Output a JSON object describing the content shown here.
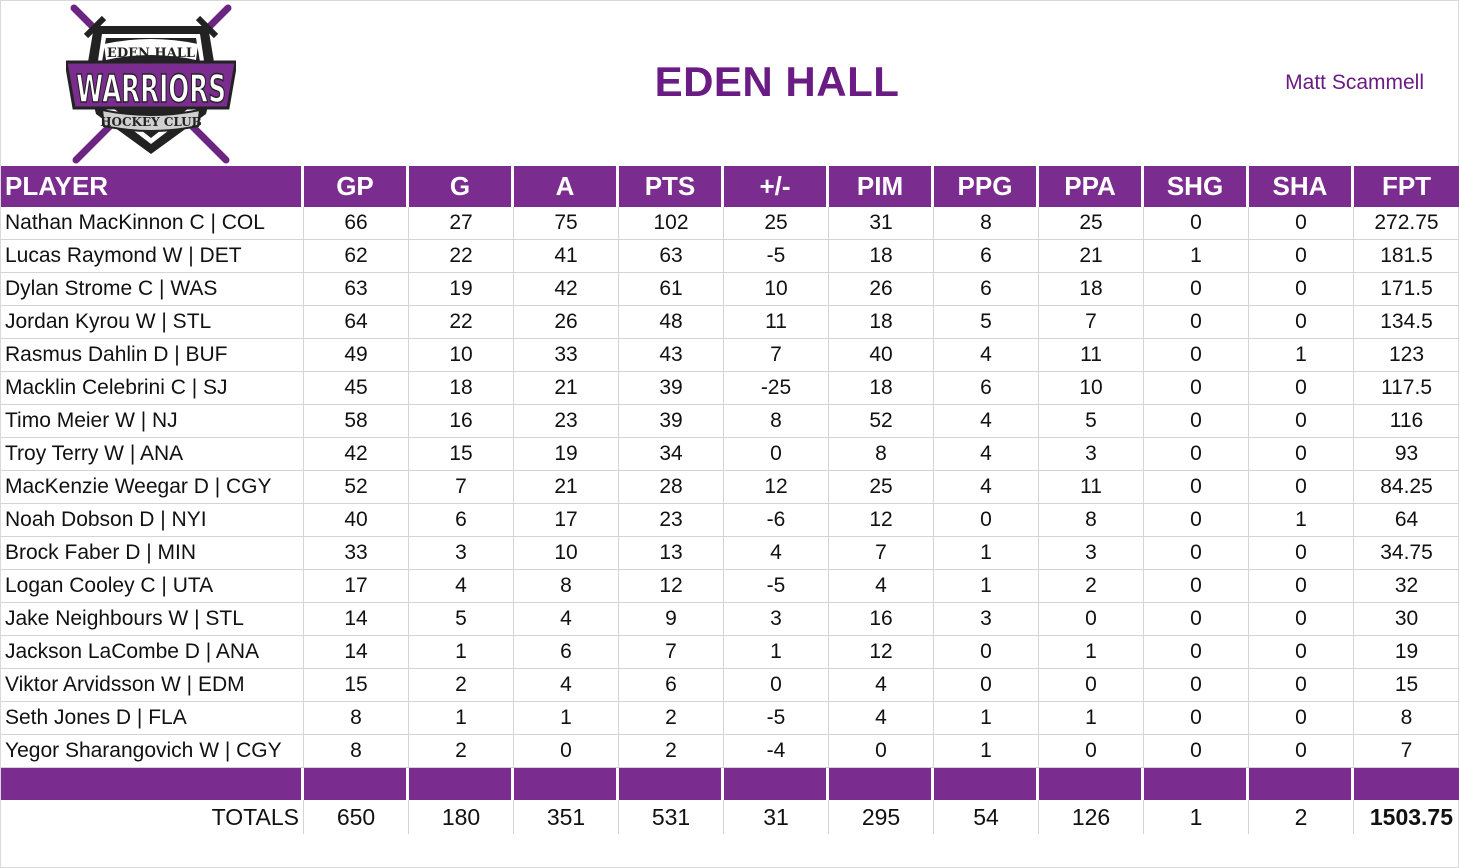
{
  "header": {
    "title": "EDEN HALL",
    "owner": "Matt Scammell",
    "logo": {
      "line1": "EDEN HALL",
      "line2": "WARRIORS",
      "line3": "HOCKEY CLUB",
      "colors": {
        "primary": "#7b2c8f",
        "dark": "#222222",
        "accent": "#bdbdbd"
      }
    }
  },
  "colors": {
    "header_bg": "#7b2c8f",
    "title": "#6a1b84"
  },
  "table": {
    "columns": [
      "PLAYER",
      "GP",
      "G",
      "A",
      "PTS",
      "+/-",
      "PIM",
      "PPG",
      "PPA",
      "SHG",
      "SHA",
      "FPT"
    ],
    "rows": [
      [
        "Nathan MacKinnon C | COL",
        "66",
        "27",
        "75",
        "102",
        "25",
        "31",
        "8",
        "25",
        "0",
        "0",
        "272.75"
      ],
      [
        "Lucas Raymond W | DET",
        "62",
        "22",
        "41",
        "63",
        "-5",
        "18",
        "6",
        "21",
        "1",
        "0",
        "181.5"
      ],
      [
        "Dylan Strome C | WAS",
        "63",
        "19",
        "42",
        "61",
        "10",
        "26",
        "6",
        "18",
        "0",
        "0",
        "171.5"
      ],
      [
        "Jordan Kyrou W | STL",
        "64",
        "22",
        "26",
        "48",
        "11",
        "18",
        "5",
        "7",
        "0",
        "0",
        "134.5"
      ],
      [
        "Rasmus Dahlin D | BUF",
        "49",
        "10",
        "33",
        "43",
        "7",
        "40",
        "4",
        "11",
        "0",
        "1",
        "123"
      ],
      [
        "Macklin Celebrini C | SJ",
        "45",
        "18",
        "21",
        "39",
        "-25",
        "18",
        "6",
        "10",
        "0",
        "0",
        "117.5"
      ],
      [
        "Timo Meier W | NJ",
        "58",
        "16",
        "23",
        "39",
        "8",
        "52",
        "4",
        "5",
        "0",
        "0",
        "116"
      ],
      [
        "Troy Terry W | ANA",
        "42",
        "15",
        "19",
        "34",
        "0",
        "8",
        "4",
        "3",
        "0",
        "0",
        "93"
      ],
      [
        "MacKenzie Weegar D | CGY",
        "52",
        "7",
        "21",
        "28",
        "12",
        "25",
        "4",
        "11",
        "0",
        "0",
        "84.25"
      ],
      [
        "Noah Dobson D | NYI",
        "40",
        "6",
        "17",
        "23",
        "-6",
        "12",
        "0",
        "8",
        "0",
        "1",
        "64"
      ],
      [
        "Brock Faber D | MIN",
        "33",
        "3",
        "10",
        "13",
        "4",
        "7",
        "1",
        "3",
        "0",
        "0",
        "34.75"
      ],
      [
        "Logan Cooley C | UTA",
        "17",
        "4",
        "8",
        "12",
        "-5",
        "4",
        "1",
        "2",
        "0",
        "0",
        "32"
      ],
      [
        "Jake Neighbours W | STL",
        "14",
        "5",
        "4",
        "9",
        "3",
        "16",
        "3",
        "0",
        "0",
        "0",
        "30"
      ],
      [
        "Jackson LaCombe D | ANA",
        "14",
        "1",
        "6",
        "7",
        "1",
        "12",
        "0",
        "1",
        "0",
        "0",
        "19"
      ],
      [
        "Viktor Arvidsson W | EDM",
        "15",
        "2",
        "4",
        "6",
        "0",
        "4",
        "0",
        "0",
        "0",
        "0",
        "15"
      ],
      [
        "Seth Jones D | FLA",
        "8",
        "1",
        "1",
        "2",
        "-5",
        "4",
        "1",
        "1",
        "0",
        "0",
        "8"
      ],
      [
        "Yegor Sharangovich W | CGY",
        "8",
        "2",
        "0",
        "2",
        "-4",
        "0",
        "1",
        "0",
        "0",
        "0",
        "7"
      ]
    ],
    "totals": [
      "TOTALS",
      "650",
      "180",
      "351",
      "531",
      "31",
      "295",
      "54",
      "126",
      "1",
      "2",
      "1503.75"
    ]
  }
}
